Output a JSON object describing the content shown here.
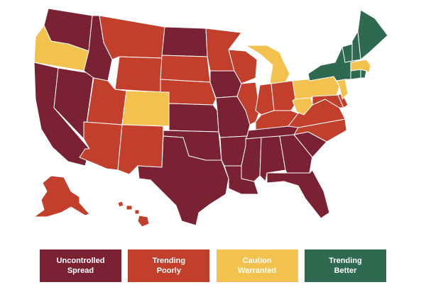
{
  "colors": {
    "uncontrolled": "#7a2233",
    "trending_poorly": "#c23f2c",
    "caution": "#f2c14e",
    "better": "#2d6a4f"
  },
  "legend": [
    {
      "key": "uncontrolled",
      "label": "Uncontrolled\nSpread"
    },
    {
      "key": "trending_poorly",
      "label": "Trending\nPoorly"
    },
    {
      "key": "caution",
      "label": "Caution\nWarranted"
    },
    {
      "key": "better",
      "label": "Trending\nBetter"
    }
  ],
  "states": {
    "WA": "uncontrolled",
    "OR": "caution",
    "CA": "uncontrolled",
    "NV": "uncontrolled",
    "ID": "uncontrolled",
    "MT": "trending_poorly",
    "WY": "trending_poorly",
    "UT": "trending_poorly",
    "AZ": "trending_poorly",
    "CO": "caution",
    "NM": "trending_poorly",
    "ND": "uncontrolled",
    "SD": "trending_poorly",
    "NE": "trending_poorly",
    "KS": "uncontrolled",
    "OK": "uncontrolled",
    "TX": "uncontrolled",
    "MN": "trending_poorly",
    "IA": "uncontrolled",
    "MO": "uncontrolled",
    "AR": "uncontrolled",
    "LA": "uncontrolled",
    "WI": "trending_poorly",
    "IL": "trending_poorly",
    "MI": "caution",
    "IN": "trending_poorly",
    "OH": "trending_poorly",
    "KY": "trending_poorly",
    "TN": "uncontrolled",
    "MS": "uncontrolled",
    "AL": "uncontrolled",
    "GA": "uncontrolled",
    "FL": "uncontrolled",
    "SC": "uncontrolled",
    "NC": "trending_poorly",
    "VA": "trending_poorly",
    "WV": "caution",
    "PA": "caution",
    "NY": "better",
    "VT": "better",
    "NH": "better",
    "ME": "better",
    "MA": "caution",
    "CT": "better",
    "RI": "better",
    "NJ": "caution",
    "DE": "trending_poorly",
    "MD": "trending_poorly",
    "AK": "trending_poorly",
    "HI": "trending_poorly"
  }
}
